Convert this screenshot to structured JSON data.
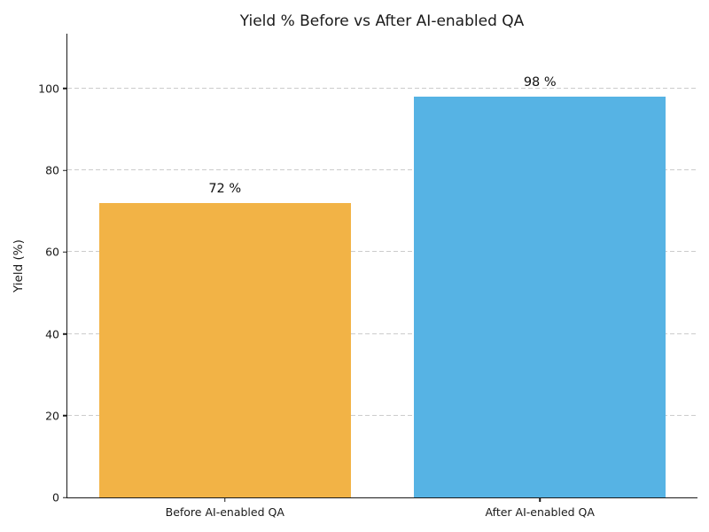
{
  "chart_data": {
    "type": "bar",
    "title": "Yield % Before vs After AI-enabled QA",
    "xlabel": "",
    "ylabel": "Yield (%)",
    "categories": [
      "Before AI-enabled QA",
      "After AI-enabled QA"
    ],
    "values": [
      72,
      98
    ],
    "value_labels": [
      "72 %",
      "98 %"
    ],
    "bar_colors": [
      "#F2B346",
      "#56B3E4"
    ],
    "yticks": [
      0,
      20,
      40,
      60,
      80,
      100
    ],
    "ylim": [
      0,
      113.4
    ],
    "bar_width_fraction": 0.8,
    "grid": {
      "axis": "y",
      "style": "dashed",
      "color": "#CCCCCC"
    },
    "legend": "none",
    "spines": [
      "left",
      "bottom"
    ]
  }
}
